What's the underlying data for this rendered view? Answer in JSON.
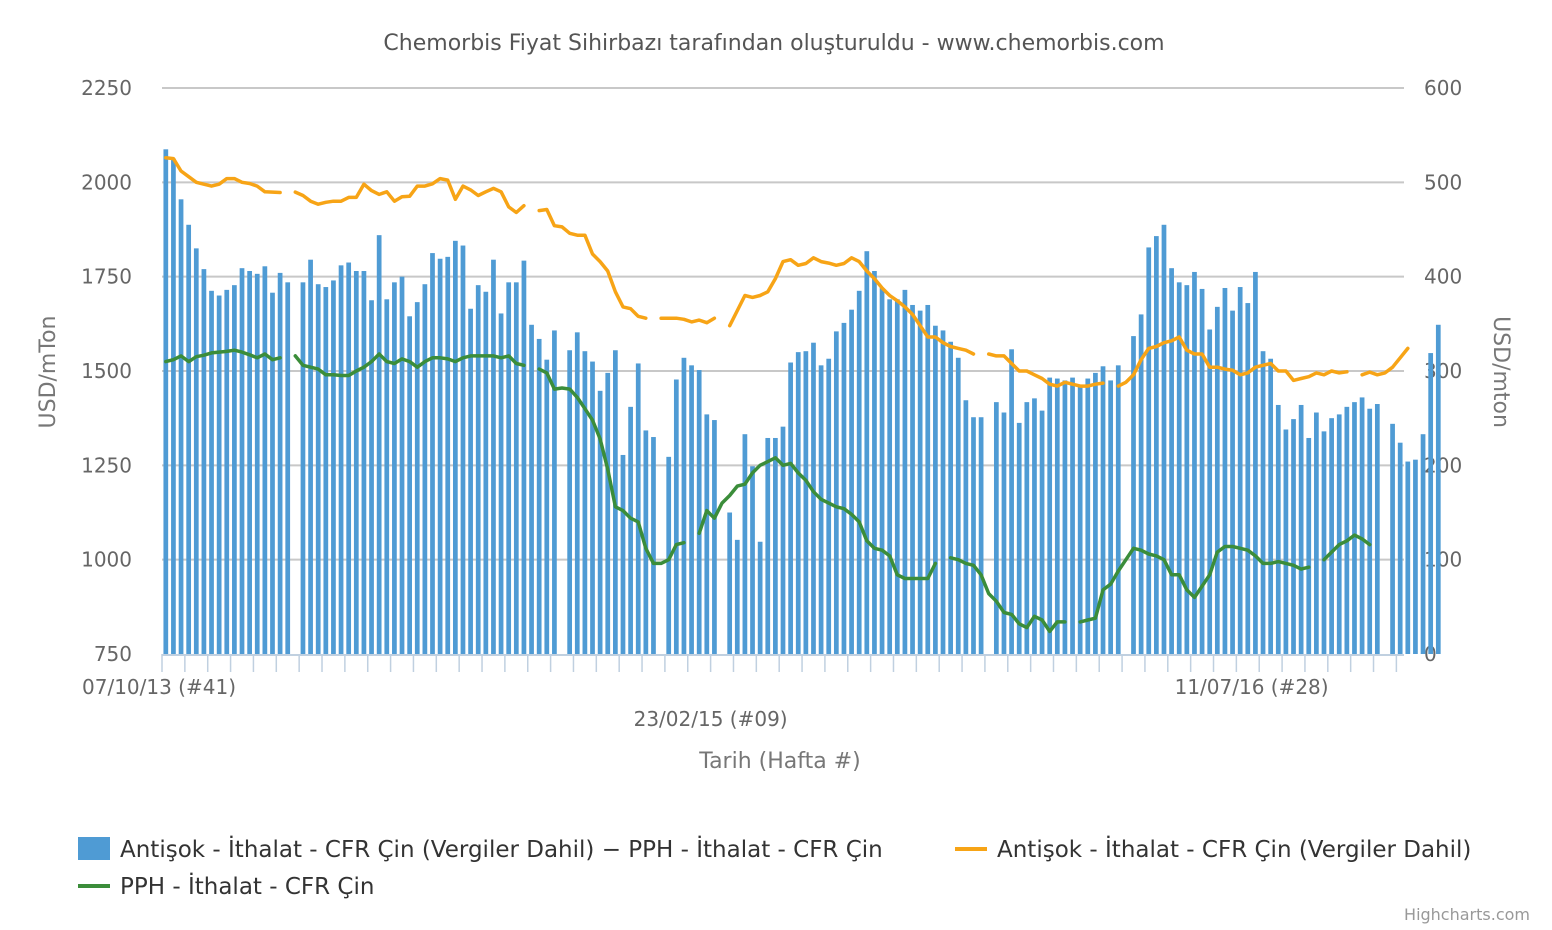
{
  "chart_data": {
    "type": "bar",
    "title": "Chemorbis Fiyat Sihirbazı tarafından oluşturuldu - www.chemorbis.com",
    "xlabel": "Tarih (Hafta #)",
    "ylabel_left": "USD/mTon",
    "ylabel_right": "USD/mton",
    "y_left_range": [
      750,
      2250
    ],
    "y_left_ticks": [
      "750",
      "1000",
      "1250",
      "1500",
      "1750",
      "2000",
      "2250"
    ],
    "y_right_range": [
      0,
      600
    ],
    "y_right_ticks": [
      "0",
      "100",
      "200",
      "300",
      "400",
      "500",
      "600"
    ],
    "x_tick_labels": [
      {
        "label": "07/10/13 (#41)",
        "week_index": 0
      },
      {
        "label": "23/02/15 (#09)",
        "week_index": 72
      },
      {
        "label": "11/07/16 (#28)",
        "week_index": 143
      }
    ],
    "week_count": 163,
    "grid": true,
    "legend_position": "bottom",
    "credits": "Highcharts.com",
    "series": [
      {
        "name": "Antişok - İthalat - CFR Çin (Vergiler Dahil) − PPH - İthalat - CFR Çin",
        "type": "column",
        "axis": "right",
        "color": "#4f9bd4",
        "values": [
          535,
          525,
          482,
          455,
          430,
          408,
          385,
          380,
          386,
          391,
          409,
          406,
          403,
          411,
          383,
          404,
          394,
          null,
          394,
          418,
          392,
          389,
          396,
          412,
          415,
          406,
          406,
          375,
          444,
          376,
          394,
          400,
          358,
          373,
          392,
          425,
          419,
          421,
          438,
          433,
          366,
          391,
          384,
          418,
          361,
          394,
          394,
          417,
          349,
          334,
          312,
          343,
          null,
          322,
          341,
          321,
          310,
          279,
          298,
          322,
          211,
          262,
          308,
          237,
          230,
          null,
          209,
          291,
          314,
          306,
          301,
          254,
          248,
          null,
          150,
          121,
          233,
          199,
          119,
          229,
          229,
          241,
          309,
          320,
          321,
          330,
          306,
          313,
          342,
          351,
          365,
          385,
          427,
          406,
          388,
          376,
          376,
          386,
          370,
          364,
          370,
          348,
          343,
          331,
          314,
          269,
          251,
          251,
          null,
          267,
          256,
          323,
          245,
          267,
          271,
          258,
          293,
          292,
          290,
          293,
          285,
          292,
          298,
          305,
          290,
          306,
          null,
          337,
          360,
          431,
          443,
          455,
          409,
          394,
          391,
          405,
          387,
          344,
          368,
          388,
          364,
          389,
          372,
          405,
          321,
          313,
          264,
          238,
          249,
          264,
          229,
          256,
          236,
          250,
          254,
          262,
          267,
          272,
          260,
          265,
          null,
          244,
          224,
          204,
          206,
          233,
          319,
          349
        ]
      },
      {
        "name": "Antişok - İthalat - CFR Çin (Vergiler Dahil)",
        "type": "line",
        "axis": "left",
        "color": "#f7a416",
        "values": [
          2065,
          2063,
          2030,
          2015,
          2000,
          1995,
          1990,
          1995,
          2010,
          2010,
          2000,
          1997,
          1990,
          1975,
          1974,
          1973,
          null,
          1974,
          1965,
          1950,
          1942,
          1947,
          1950,
          1950,
          1960,
          1960,
          1995,
          1978,
          1968,
          1975,
          1950,
          1962,
          1963,
          1990,
          1990,
          1996,
          2010,
          2006,
          1955,
          1990,
          1980,
          1965,
          1975,
          1984,
          1975,
          1935,
          1920,
          1938,
          null,
          1925,
          1928,
          1885,
          1882,
          1865,
          1860,
          1860,
          1810,
          1790,
          1765,
          1710,
          1670,
          1665,
          1645,
          1640,
          null,
          1640,
          1640,
          1640,
          1637,
          1630,
          1635,
          1628,
          1640,
          null,
          1620,
          1660,
          1700,
          1695,
          1700,
          1710,
          1745,
          1790,
          1795,
          1780,
          1785,
          1800,
          1790,
          1786,
          1780,
          1785,
          1800,
          1790,
          1765,
          1745,
          1720,
          1700,
          1686,
          1670,
          1650,
          1620,
          1590,
          1590,
          1575,
          1565,
          1560,
          1555,
          1545,
          null,
          1545,
          1540,
          1540,
          1520,
          1500,
          1500,
          1490,
          1480,
          1465,
          1460,
          1470,
          1465,
          1460,
          1460,
          1465,
          1468,
          null,
          1460,
          1470,
          1490,
          1530,
          1560,
          1565,
          1575,
          1580,
          1590,
          1555,
          1545,
          1545,
          1510,
          1510,
          1505,
          1502,
          1490,
          1495,
          1510,
          1515,
          1520,
          1500,
          1500,
          1475,
          1480,
          1485,
          1495,
          1490,
          1500,
          1495,
          1498,
          null,
          1490,
          1497,
          1490,
          1495,
          1510,
          1535,
          1560
        ]
      },
      {
        "name": "PPH - İthalat - CFR Çin",
        "type": "line",
        "axis": "left",
        "color": "#3b8d3a",
        "values": [
          1525,
          1530,
          1540,
          1525,
          1538,
          1542,
          1548,
          1550,
          1552,
          1555,
          1550,
          1543,
          1535,
          1545,
          1530,
          1535,
          null,
          1540,
          1515,
          1510,
          1505,
          1490,
          1490,
          1488,
          1488,
          1500,
          1510,
          1525,
          1545,
          1525,
          1520,
          1532,
          1525,
          1510,
          1525,
          1535,
          1535,
          1532,
          1525,
          1535,
          1540,
          1540,
          1540,
          1540,
          1535,
          1540,
          1520,
          1515,
          null,
          1505,
          1495,
          1452,
          1455,
          1452,
          1430,
          1400,
          1370,
          1320,
          1240,
          1140,
          1130,
          1110,
          1100,
          1030,
          990,
          990,
          1000,
          1040,
          1045,
          null,
          1070,
          1130,
          1110,
          1150,
          1170,
          1195,
          1200,
          1230,
          1250,
          1260,
          1270,
          1250,
          1255,
          1230,
          1210,
          1180,
          1160,
          1150,
          1140,
          1135,
          1120,
          1100,
          1050,
          1030,
          1025,
          1010,
          960,
          950,
          950,
          950,
          950,
          990,
          null,
          1005,
          1000,
          990,
          985,
          960,
          910,
          890,
          860,
          855,
          830,
          820,
          850,
          840,
          810,
          835,
          835,
          null,
          835,
          840,
          845,
          920,
          935,
          970,
          1000,
          1030,
          1025,
          1015,
          1010,
          1000,
          960,
          960,
          920,
          900,
          930,
          960,
          1020,
          1035,
          1035,
          1030,
          1025,
          1010,
          990,
          990,
          995,
          990,
          985,
          975,
          980,
          null,
          1000,
          1020,
          1040,
          1050,
          1065,
          1055,
          1040
        ]
      }
    ]
  }
}
